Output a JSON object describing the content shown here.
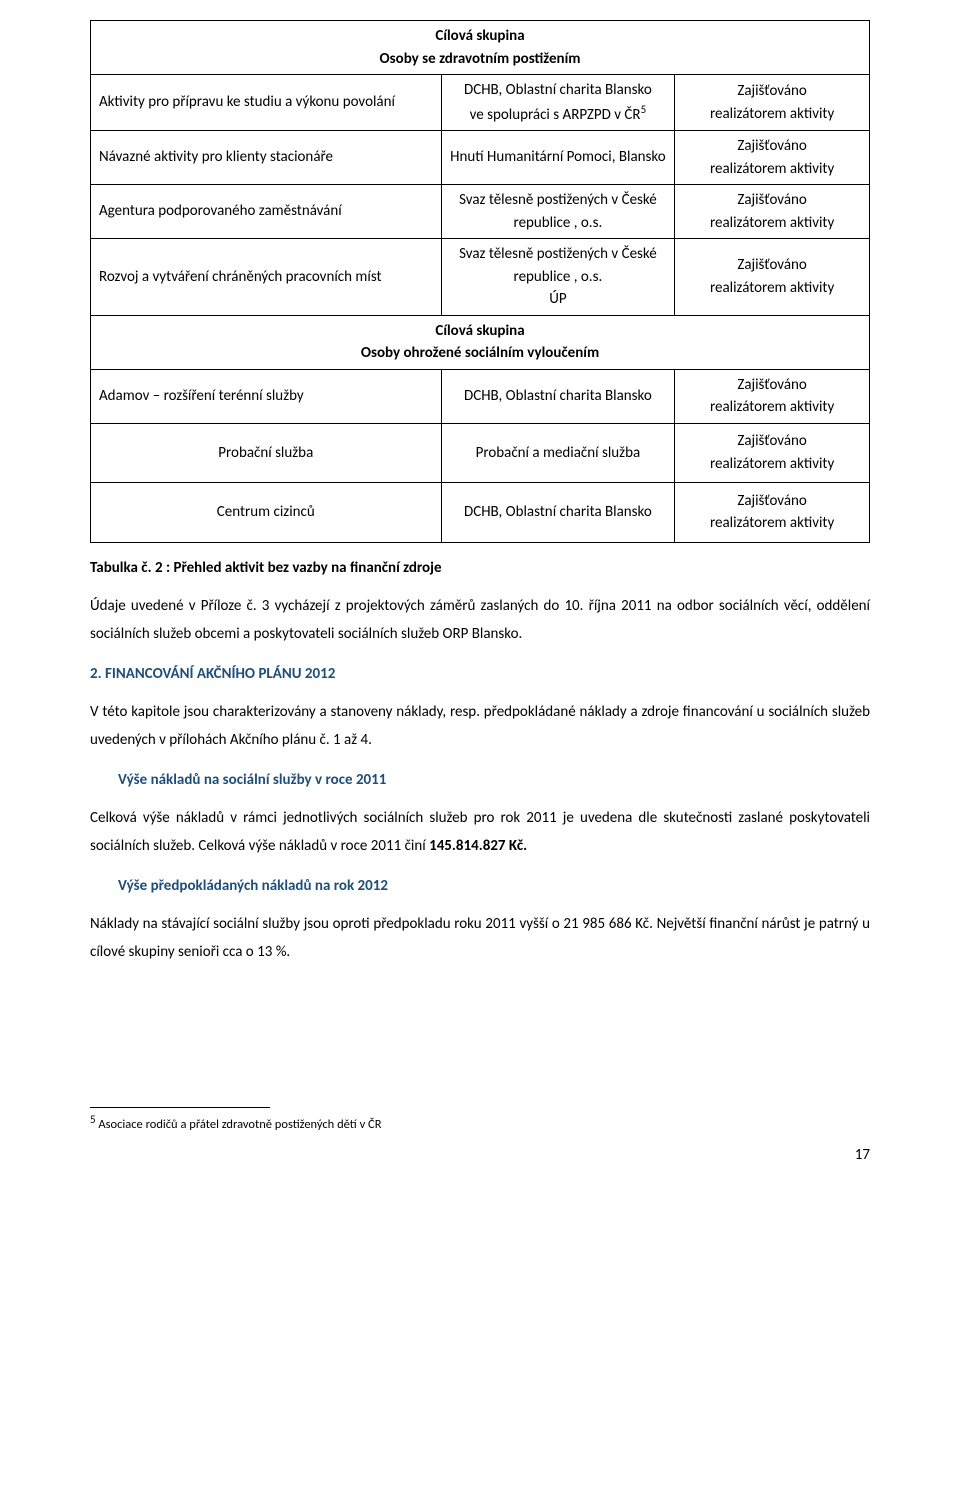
{
  "table": {
    "grp1": {
      "title1": "Cílová skupina",
      "title2": "Osoby se zdravotním postižením"
    },
    "r1": {
      "c1": "Aktivity pro přípravu ke studiu a výkonu povolání",
      "c2a": "DCHB, Oblastní charita Blansko",
      "c2b": "ve spolupráci s ARPZPD v ČR",
      "c2sup": "5",
      "c3a": "Zajišťováno",
      "c3b": "realizátorem aktivity"
    },
    "r2": {
      "c1": "Návazné aktivity pro klienty stacionáře",
      "c2a": "Hnutí Humanitární Pomoci, Blansko",
      "c3a": "Zajišťováno",
      "c3b": "realizátorem aktivity"
    },
    "r3": {
      "c1": "Agentura podporovaného zaměstnávání",
      "c2a": "Svaz tělesně postižených v České republice , o.s.",
      "c3a": "Zajišťováno",
      "c3b": "realizátorem aktivity"
    },
    "r4": {
      "c1": "Rozvoj a vytváření chráněných pracovních míst",
      "c2a": "Svaz tělesně postižených v České republice , o.s.",
      "c2b": "ÚP",
      "c3a": "Zajišťováno",
      "c3b": "realizátorem aktivity"
    },
    "grp2": {
      "title1": "Cílová skupina",
      "title2": "Osoby ohrožené sociálním vyloučením"
    },
    "r5": {
      "c1": "Adamov – rozšíření terénní služby",
      "c2a": "DCHB, Oblastní charita Blansko",
      "c3a": "Zajišťováno",
      "c3b": "realizátorem aktivity"
    },
    "r6": {
      "c1": "Probační služba",
      "c2a": "Probační a mediační služba",
      "c3a": "Zajišťováno",
      "c3b": "realizátorem aktivity"
    },
    "r7": {
      "c1": "Centrum cizinců",
      "c2a": "DCHB, Oblastní charita Blansko",
      "c3a": "Zajišťováno",
      "c3b": "realizátorem aktivity"
    }
  },
  "caption": "Tabulka č. 2 : Přehled aktivit bez vazby na finanční zdroje",
  "para1": "Údaje uvedené v Příloze č. 3 vycházejí z projektových záměrů zaslaných do 10. října 2011 na odbor sociálních věcí, oddělení sociálních služeb obcemi a poskytovateli sociálních služeb  ORP Blansko.",
  "sec2": "2. FINANCOVÁNÍ AKČNÍHO PLÁNU 2012",
  "para2": "V této kapitole jsou charakterizovány a stanoveny náklady, resp. předpokládané náklady a zdroje financování u sociálních služeb uvedených v přílohách Akčního plánu č. 1 až 4.",
  "sub1": "Výše nákladů na sociální služby v roce 2011",
  "para3a": "Celková výše nákladů v rámci jednotlivých sociálních služeb pro rok 2011 je uvedena dle skutečnosti zaslané poskytovateli sociálních služeb. Celková výše nákladů v roce 2011 činí ",
  "para3b": "145.814.827 Kč.",
  "sub2": "Výše předpokládaných nákladů na rok 2012",
  "para4": "Náklady na stávající sociální služby jsou oproti předpokladu roku 2011 vyšší o 21 985 686 Kč. Největší finanční nárůst je patrný u cílové skupiny senioři cca o 13 %.",
  "footnote": {
    "num": "5",
    "text": " Asociace rodičů a přátel zdravotně postižených dětí v ČR"
  },
  "pagenum": "17"
}
